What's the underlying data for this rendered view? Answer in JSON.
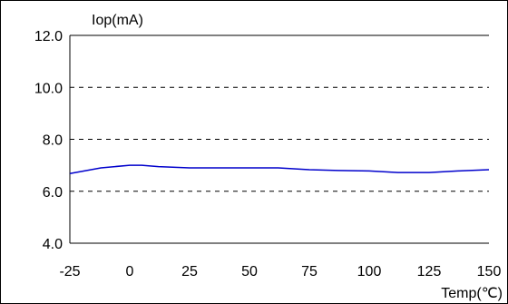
{
  "chart_data": {
    "type": "line",
    "title": "",
    "ylabel": "Iop(mA)",
    "xlabel": "Temp(℃)",
    "xlim": [
      -25,
      150
    ],
    "ylim": [
      4.0,
      12.0
    ],
    "x_ticks": [
      -25,
      0,
      25,
      50,
      75,
      100,
      125,
      150
    ],
    "x_tick_labels": [
      "-25",
      "0",
      "25",
      "50",
      "75",
      "100",
      "125",
      "150"
    ],
    "y_ticks": [
      4.0,
      6.0,
      8.0,
      10.0,
      12.0
    ],
    "y_tick_labels": [
      "4.0",
      "6.0",
      "8.0",
      "10.0",
      "12.0"
    ],
    "gridlines_y": [
      6.0,
      8.0,
      10.0
    ],
    "grid": "horizontal-dashed",
    "legend": "none",
    "series": [
      {
        "color": "#0000cc",
        "x": [
          -25,
          -12,
          0,
          5,
          12,
          25,
          37,
          50,
          62,
          75,
          87,
          100,
          112,
          125,
          137,
          150
        ],
        "values": [
          6.68,
          6.9,
          7.0,
          7.0,
          6.95,
          6.9,
          6.9,
          6.9,
          6.9,
          6.83,
          6.8,
          6.78,
          6.72,
          6.72,
          6.78,
          6.83
        ]
      }
    ]
  }
}
